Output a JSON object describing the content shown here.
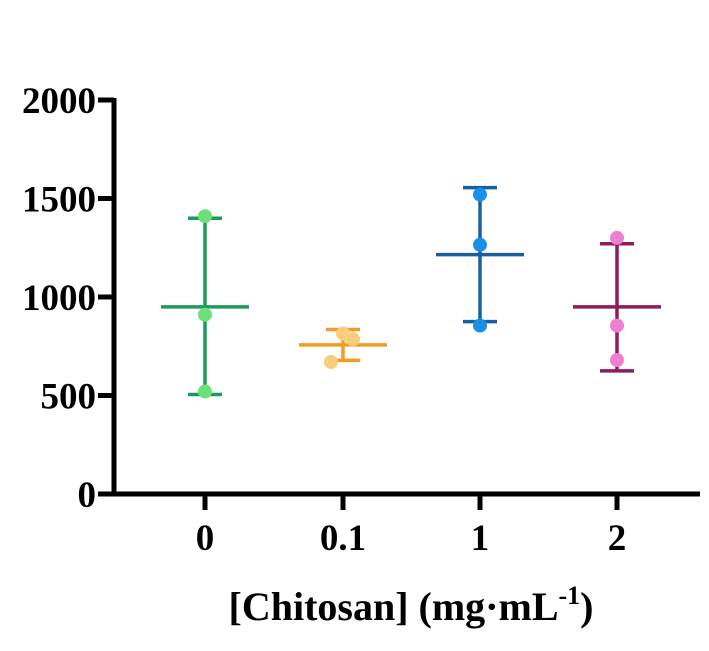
{
  "chart_data": {
    "type": "scatter",
    "title": "",
    "xlabel": "[Chitosan] (mg·mL",
    "xlabel_superscript": "-1",
    "xlabel_close": ")",
    "ylabel": "",
    "ylim": [
      0,
      2000
    ],
    "yticks": [
      0,
      500,
      1000,
      1500,
      2000
    ],
    "ytick_labels": [
      "0",
      "500",
      "1000",
      "1500",
      "2000"
    ],
    "categories": [
      "0",
      "0.1",
      "1",
      "2"
    ],
    "series": [
      {
        "name": "0",
        "line_color": "#1f9a5c",
        "point_color": "#6ee07a",
        "points": [
          1410,
          910,
          520
        ],
        "mean": 950,
        "upper": 1400,
        "lower": 505
      },
      {
        "name": "0.1",
        "line_color": "#f39c1f",
        "point_color": "#f9cd7a",
        "points": [
          815,
          785,
          670
        ],
        "mean": 757,
        "upper": 835,
        "lower": 678
      },
      {
        "name": "1",
        "line_color": "#1a5fa0",
        "point_color": "#1a8fe8",
        "points": [
          1520,
          1265,
          855
        ],
        "mean": 1215,
        "upper": 1555,
        "lower": 875
      },
      {
        "name": "2",
        "line_color": "#8e1d5e",
        "point_color": "#ee7fd3",
        "points": [
          1300,
          855,
          680
        ],
        "mean": 950,
        "upper": 1270,
        "lower": 625
      }
    ]
  }
}
